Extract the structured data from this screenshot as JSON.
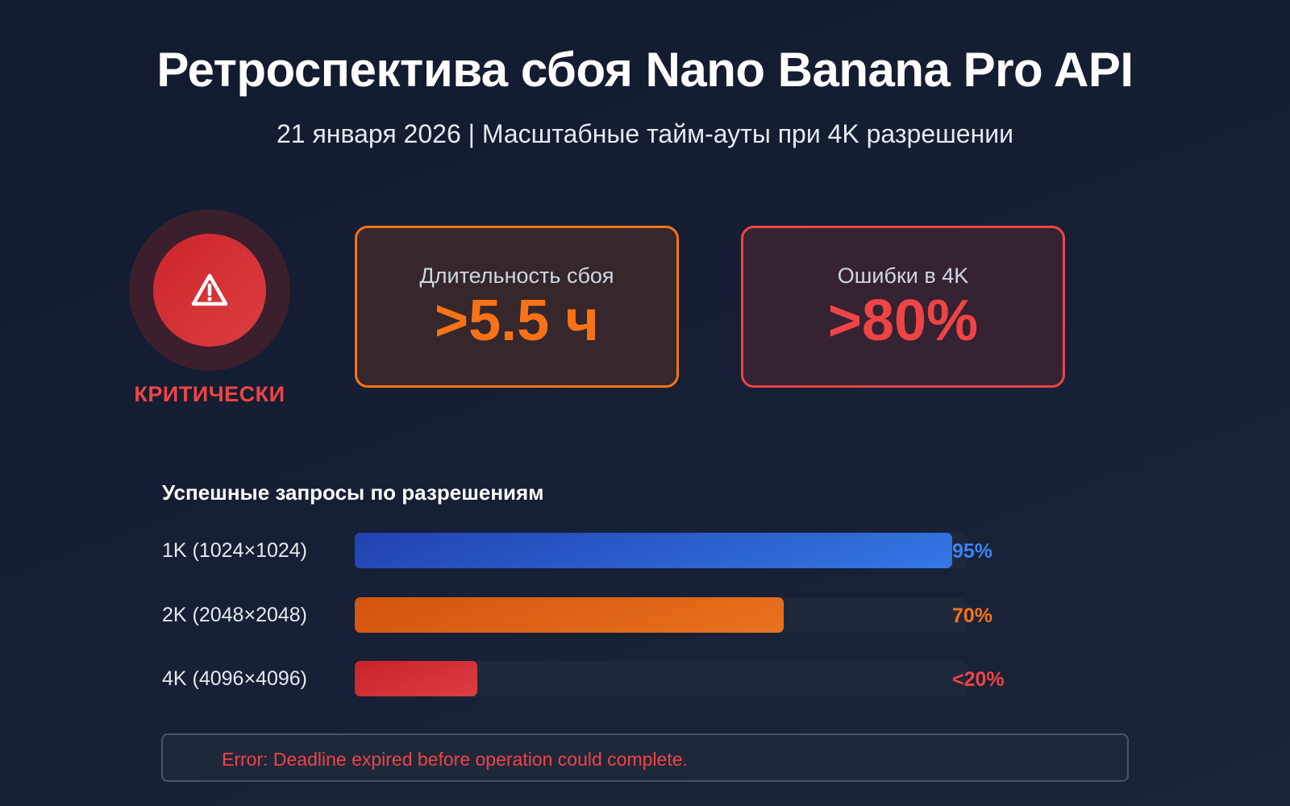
{
  "header": {
    "title": "Ретроспектива сбоя Nano Banana Pro API",
    "subtitle": "21 января 2026 | Масштабные тайм-ауты при 4K разрешении"
  },
  "status": {
    "icon": "warning-triangle-icon",
    "label": "КРИТИЧЕСКИ",
    "color": "#ef4444"
  },
  "metrics": [
    {
      "label": "Длительность сбоя",
      "value": ">5.5 ч",
      "color": "#f97316"
    },
    {
      "label": "Ошибки в 4K",
      "value": ">80%",
      "color": "#ef4444"
    }
  ],
  "success": {
    "title": "Успешные запросы по разрешениям",
    "rows": [
      {
        "label": "1K (1024×1024)",
        "percent": 95,
        "display": "95%",
        "color": "#3b82f6",
        "gradient": [
          "#2142b0",
          "#3478e6"
        ]
      },
      {
        "label": "2K (2048×2048)",
        "percent": 70,
        "display": "70%",
        "color": "#f97316",
        "gradient": [
          "#d4540f",
          "#e8721d"
        ]
      },
      {
        "label": "4K (4096×4096)",
        "percent": 20,
        "display": "<20%",
        "color": "#ef4444",
        "gradient": [
          "#c9232a",
          "#db3e44"
        ]
      }
    ]
  },
  "error": {
    "message": "Error: Deadline expired before operation could complete."
  }
}
